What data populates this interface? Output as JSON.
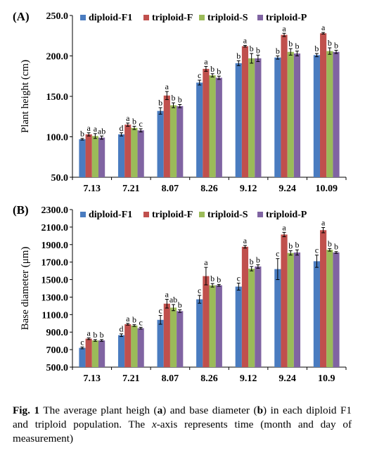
{
  "colors": {
    "diploid_f1": "#4a7cc0",
    "triploid_f": "#c0504d",
    "triploid_s": "#9bbb59",
    "triploid_p": "#8064a2",
    "error_bar": "#000000"
  },
  "caption": {
    "label": "Fig. 1",
    "text_1": " The average plant heigh (",
    "a": "a",
    "text_2": ") and base diameter (",
    "b": "b",
    "text_3": ") in each diploid F1 and triploid population. The ",
    "x_italic": "x",
    "text_4": "-axis represents time (month and day of measurement)"
  },
  "chart_data": [
    {
      "type": "bar",
      "panel_label": "(A)",
      "ylabel": "Plant height (cm)",
      "ylim": [
        50,
        250
      ],
      "yticks": [
        "50.0",
        "100.0",
        "150.0",
        "200.0",
        "250.0"
      ],
      "ytick_values": [
        50,
        100,
        150,
        200,
        250
      ],
      "categories": [
        "7.13",
        "7.21",
        "8.07",
        "8.26",
        "9.12",
        "9.24",
        "10.09"
      ],
      "legend_placement": "top",
      "series": [
        {
          "name": "diploid-F1",
          "values": [
            97,
            103,
            132,
            167,
            191,
            198,
            201
          ],
          "errors": [
            1,
            2,
            4,
            3,
            3,
            2,
            2
          ],
          "labels": [
            "b",
            "d",
            "b",
            "c",
            "b",
            "b",
            "b"
          ]
        },
        {
          "name": "triploid-F",
          "values": [
            103,
            115,
            151,
            184,
            212,
            226,
            228
          ],
          "errors": [
            2,
            2,
            5,
            3,
            1,
            2,
            1
          ],
          "labels": [
            "a",
            "a",
            "a",
            "a",
            "a",
            "a",
            "a"
          ]
        },
        {
          "name": "triploid-S",
          "values": [
            101,
            111,
            139,
            176,
            197,
            205,
            206
          ],
          "errors": [
            3,
            2,
            3,
            2,
            6,
            4,
            4
          ],
          "labels": [
            "a",
            "b",
            "b",
            "b",
            "b",
            "b",
            "b"
          ]
        },
        {
          "name": "triploid-P",
          "values": [
            99,
            108,
            138,
            173,
            197,
            203,
            205
          ],
          "errors": [
            2,
            2,
            2,
            2,
            4,
            3,
            2
          ],
          "labels": [
            "ab",
            "c",
            "b",
            "b",
            "b",
            "b",
            "b"
          ]
        }
      ]
    },
    {
      "type": "bar",
      "panel_label": "(B)",
      "ylabel": "Base diameter (μm)",
      "ylim": [
        500,
        2300
      ],
      "yticks": [
        "500.0",
        "700.0",
        "900.0",
        "1100.0",
        "1300.0",
        "1500.0",
        "1700.0",
        "1900.0",
        "2100.0",
        "2300.0"
      ],
      "ytick_values": [
        500,
        700,
        900,
        1100,
        1300,
        1500,
        1700,
        1900,
        2100,
        2300
      ],
      "categories": [
        "7.13",
        "7.21",
        "8.07",
        "8.26",
        "9.12",
        "9.24",
        "10.9"
      ],
      "legend_placement": "top",
      "series": [
        {
          "name": "diploid-F1",
          "values": [
            720,
            865,
            1040,
            1275,
            1420,
            1620,
            1710
          ],
          "errors": [
            10,
            15,
            50,
            45,
            40,
            120,
            70
          ],
          "labels": [
            "c",
            "d",
            "c",
            "c",
            "c",
            "c",
            "c"
          ]
        },
        {
          "name": "triploid-F",
          "values": [
            825,
            990,
            1225,
            1540,
            1875,
            2015,
            2065
          ],
          "errors": [
            10,
            10,
            50,
            100,
            15,
            25,
            30
          ],
          "labels": [
            "a",
            "a",
            "a",
            "a",
            "a",
            "a",
            "a"
          ]
        },
        {
          "name": "triploid-S",
          "values": [
            805,
            975,
            1180,
            1435,
            1625,
            1805,
            1840
          ],
          "errors": [
            10,
            10,
            35,
            20,
            25,
            25,
            15
          ],
          "labels": [
            "b",
            "b",
            "ab",
            "b",
            "b",
            "b",
            "b"
          ]
        },
        {
          "name": "triploid-P",
          "values": [
            805,
            945,
            1140,
            1435,
            1650,
            1810,
            1810
          ],
          "errors": [
            10,
            10,
            15,
            10,
            20,
            30,
            10
          ],
          "labels": [
            "b",
            "c",
            "b",
            "b",
            "b",
            "b",
            "b"
          ]
        }
      ]
    }
  ]
}
